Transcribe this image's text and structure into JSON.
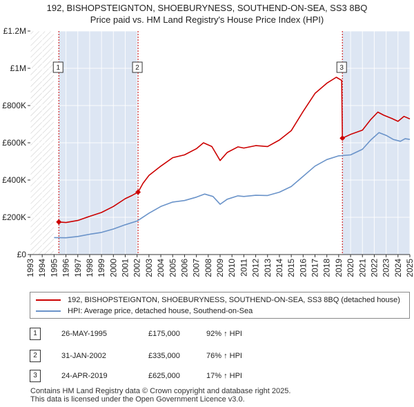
{
  "chart_data": {
    "type": "line",
    "title": "192, BISHOPSTEIGNTON, SHOEBURYNESS, SOUTHEND-ON-SEA, SS3 8BQ",
    "subtitle": "Price paid vs. HM Land Registry's House Price Index (HPI)",
    "xlabel": "",
    "ylabel": "",
    "xlim": [
      1993,
      2025
    ],
    "ylim": [
      0,
      1200000
    ],
    "y_ticks": [
      {
        "value": 0,
        "label": "£0"
      },
      {
        "value": 200000,
        "label": "£200K"
      },
      {
        "value": 400000,
        "label": "£400K"
      },
      {
        "value": 600000,
        "label": "£600K"
      },
      {
        "value": 800000,
        "label": "£800K"
      },
      {
        "value": 1000000,
        "label": "£1M"
      },
      {
        "value": 1200000,
        "label": "£1.2M"
      }
    ],
    "x_ticks": [
      "1993",
      "1994",
      "1995",
      "1996",
      "1997",
      "1998",
      "1999",
      "2000",
      "2001",
      "2002",
      "2003",
      "2004",
      "2005",
      "2006",
      "2007",
      "2008",
      "2009",
      "2010",
      "2011",
      "2012",
      "2013",
      "2014",
      "2015",
      "2016",
      "2017",
      "2018",
      "2019",
      "2020",
      "2021",
      "2022",
      "2023",
      "2024",
      "2025"
    ],
    "hatched_before": 1995,
    "sale_markers": [
      {
        "label": "1",
        "x": 1995.4,
        "y": 175000
      },
      {
        "label": "2",
        "x": 2002.08,
        "y": 335000
      },
      {
        "label": "3",
        "x": 2019.31,
        "y": 625000
      }
    ],
    "series": [
      {
        "name": "192, BISHOPSTEIGNTON, SHOEBURYNESS, SOUTHEND-ON-SEA, SS3 8BQ (detached house)",
        "color": "#cc0000",
        "points": [
          [
            1995.4,
            175000
          ],
          [
            1996.0,
            172000
          ],
          [
            1997.0,
            183000
          ],
          [
            1998.0,
            205000
          ],
          [
            1999.0,
            226000
          ],
          [
            2000.0,
            258000
          ],
          [
            2001.0,
            300000
          ],
          [
            2001.6,
            318000
          ],
          [
            2002.08,
            335000
          ],
          [
            2002.5,
            383000
          ],
          [
            2003.0,
            425000
          ],
          [
            2004.0,
            475000
          ],
          [
            2005.0,
            520000
          ],
          [
            2006.0,
            535000
          ],
          [
            2007.0,
            568000
          ],
          [
            2007.6,
            600000
          ],
          [
            2008.3,
            580000
          ],
          [
            2009.0,
            505000
          ],
          [
            2009.6,
            548000
          ],
          [
            2010.5,
            578000
          ],
          [
            2011.0,
            572000
          ],
          [
            2012.0,
            585000
          ],
          [
            2013.0,
            580000
          ],
          [
            2014.0,
            615000
          ],
          [
            2015.0,
            665000
          ],
          [
            2016.0,
            768000
          ],
          [
            2017.0,
            865000
          ],
          [
            2018.0,
            920000
          ],
          [
            2018.8,
            952000
          ],
          [
            2019.25,
            935000
          ],
          [
            2019.31,
            625000
          ],
          [
            2020.0,
            645000
          ],
          [
            2021.0,
            668000
          ],
          [
            2021.7,
            725000
          ],
          [
            2022.3,
            765000
          ],
          [
            2022.8,
            748000
          ],
          [
            2023.5,
            730000
          ],
          [
            2024.0,
            715000
          ],
          [
            2024.5,
            742000
          ],
          [
            2025.0,
            728000
          ]
        ]
      },
      {
        "name": "HPI: Average price, detached house, Southend-on-Sea",
        "color": "#6a93c9",
        "points": [
          [
            1995.0,
            91000
          ],
          [
            1996.0,
            90000
          ],
          [
            1997.0,
            97000
          ],
          [
            1998.0,
            109000
          ],
          [
            1999.0,
            119000
          ],
          [
            2000.0,
            137000
          ],
          [
            2001.0,
            160000
          ],
          [
            2002.0,
            180000
          ],
          [
            2003.0,
            222000
          ],
          [
            2004.0,
            258000
          ],
          [
            2005.0,
            282000
          ],
          [
            2006.0,
            290000
          ],
          [
            2007.0,
            308000
          ],
          [
            2007.7,
            325000
          ],
          [
            2008.4,
            312000
          ],
          [
            2009.0,
            270000
          ],
          [
            2009.6,
            297000
          ],
          [
            2010.5,
            315000
          ],
          [
            2011.0,
            312000
          ],
          [
            2012.0,
            318000
          ],
          [
            2013.0,
            317000
          ],
          [
            2014.0,
            335000
          ],
          [
            2015.0,
            365000
          ],
          [
            2016.0,
            420000
          ],
          [
            2017.0,
            475000
          ],
          [
            2018.0,
            510000
          ],
          [
            2019.0,
            530000
          ],
          [
            2020.0,
            535000
          ],
          [
            2021.0,
            565000
          ],
          [
            2021.7,
            615000
          ],
          [
            2022.4,
            655000
          ],
          [
            2023.0,
            640000
          ],
          [
            2023.6,
            618000
          ],
          [
            2024.2,
            608000
          ],
          [
            2024.6,
            622000
          ],
          [
            2025.0,
            618000
          ]
        ]
      }
    ]
  },
  "legend": {
    "items": [
      {
        "label": "192, BISHOPSTEIGNTON, SHOEBURYNESS, SOUTHEND-ON-SEA, SS3 8BQ (detached house)",
        "color": "#cc0000"
      },
      {
        "label": "HPI: Average price, detached house, Southend-on-Sea",
        "color": "#6a93c9"
      }
    ]
  },
  "sales": [
    {
      "num": "1",
      "date": "26-MAY-1995",
      "price": "£175,000",
      "hpi": "92% ↑ HPI"
    },
    {
      "num": "2",
      "date": "31-JAN-2002",
      "price": "£335,000",
      "hpi": "76% ↑ HPI"
    },
    {
      "num": "3",
      "date": "24-APR-2019",
      "price": "£625,000",
      "hpi": "17% ↑ HPI"
    }
  ],
  "footer": {
    "line1": "Contains HM Land Registry data © Crown copyright and database right 2025.",
    "line2": "This data is licensed under the Open Government Licence v3.0."
  }
}
